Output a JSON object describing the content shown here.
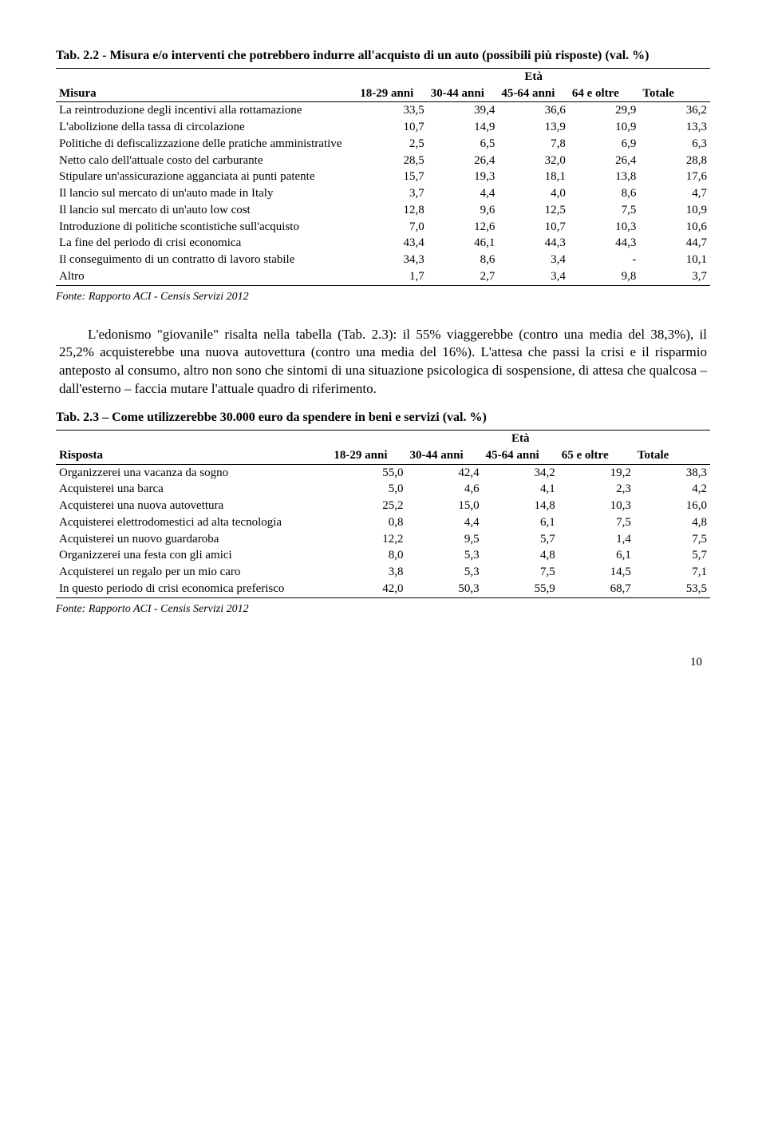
{
  "table1": {
    "title": "Tab. 2.2 - Misura e/o interventi che potrebbero indurre all'acquisto di un auto (possibili più risposte) (val. %)",
    "eta_label": "Età",
    "col0_label": "Misura",
    "age_headers": [
      "18-29 anni",
      "30-44 anni",
      "45-64 anni",
      "64 e oltre",
      "Totale"
    ],
    "rows": [
      {
        "label": "La reintroduzione degli incentivi alla rottamazione",
        "v": [
          "33,5",
          "39,4",
          "36,6",
          "29,9",
          "36,2"
        ]
      },
      {
        "label": "L'abolizione della tassa di circolazione",
        "v": [
          "10,7",
          "14,9",
          "13,9",
          "10,9",
          "13,3"
        ]
      },
      {
        "label": "Politiche di defiscalizzazione delle pratiche amministrative",
        "v": [
          "2,5",
          "6,5",
          "7,8",
          "6,9",
          "6,3"
        ]
      },
      {
        "label": "Netto calo dell'attuale costo del carburante",
        "v": [
          "28,5",
          "26,4",
          "32,0",
          "26,4",
          "28,8"
        ]
      },
      {
        "label": "Stipulare un'assicurazione agganciata ai punti patente",
        "v": [
          "15,7",
          "19,3",
          "18,1",
          "13,8",
          "17,6"
        ]
      },
      {
        "label": "Il lancio sul mercato di un'auto made in Italy",
        "v": [
          "3,7",
          "4,4",
          "4,0",
          "8,6",
          "4,7"
        ]
      },
      {
        "label": "Il lancio sul mercato di un'auto low cost",
        "v": [
          "12,8",
          "9,6",
          "12,5",
          "7,5",
          "10,9"
        ]
      },
      {
        "label": "Introduzione di politiche scontistiche sull'acquisto",
        "v": [
          "7,0",
          "12,6",
          "10,7",
          "10,3",
          "10,6"
        ]
      },
      {
        "label": "La fine del periodo di crisi economica",
        "v": [
          "43,4",
          "46,1",
          "44,3",
          "44,3",
          "44,7"
        ]
      },
      {
        "label": "Il conseguimento di un contratto di lavoro stabile",
        "v": [
          "34,3",
          "8,6",
          "3,4",
          "-",
          "10,1"
        ]
      },
      {
        "label": "Altro",
        "v": [
          "1,7",
          "2,7",
          "3,4",
          "9,8",
          "3,7"
        ]
      }
    ],
    "fonte": "Fonte: Rapporto ACI  - Censis Servizi 2012"
  },
  "paragraph": "L'edonismo \"giovanile\" risalta nella tabella (Tab. 2.3): il 55% viaggerebbe (contro una media del 38,3%), il 25,2% acquisterebbe una nuova autovettura (contro una media del 16%). L'attesa che passi la crisi e il risparmio anteposto al consumo, altro non sono che sintomi di una situazione psicologica di sospensione, di attesa che qualcosa – dall'esterno – faccia mutare l'attuale quadro di riferimento.",
  "table2": {
    "title": "Tab. 2.3 – Come utilizzerebbe 30.000 euro da spendere in beni e servizi (val. %)",
    "eta_label": "Età",
    "col0_label": "Risposta",
    "age_headers": [
      "18-29 anni",
      "30-44 anni",
      "45-64 anni",
      "65 e oltre",
      "Totale"
    ],
    "rows": [
      {
        "label": "Organizzerei una vacanza da sogno",
        "v": [
          "55,0",
          "42,4",
          "34,2",
          "19,2",
          "38,3"
        ]
      },
      {
        "label": "Acquisterei una barca",
        "v": [
          "5,0",
          "4,6",
          "4,1",
          "2,3",
          "4,2"
        ]
      },
      {
        "label": "Acquisterei una nuova autovettura",
        "v": [
          "25,2",
          "15,0",
          "14,8",
          "10,3",
          "16,0"
        ]
      },
      {
        "label": "Acquisterei elettrodomestici ad alta tecnologia",
        "v": [
          "0,8",
          "4,4",
          "6,1",
          "7,5",
          "4,8"
        ]
      },
      {
        "label": "Acquisterei un nuovo guardaroba",
        "v": [
          "12,2",
          "9,5",
          "5,7",
          "1,4",
          "7,5"
        ]
      },
      {
        "label": "Organizzerei una festa con gli amici",
        "v": [
          "8,0",
          "5,3",
          "4,8",
          "6,1",
          "5,7"
        ]
      },
      {
        "label": "Acquisterei un regalo per un mio caro",
        "v": [
          "3,8",
          "5,3",
          "7,5",
          "14,5",
          "7,1"
        ]
      },
      {
        "label": "In questo periodo di crisi economica preferisco",
        "v": [
          "42,0",
          "50,3",
          "55,9",
          "68,7",
          "53,5"
        ]
      }
    ],
    "fonte": "Fonte: Rapporto ACI  - Censis Servizi 2012"
  },
  "page_number": "10"
}
